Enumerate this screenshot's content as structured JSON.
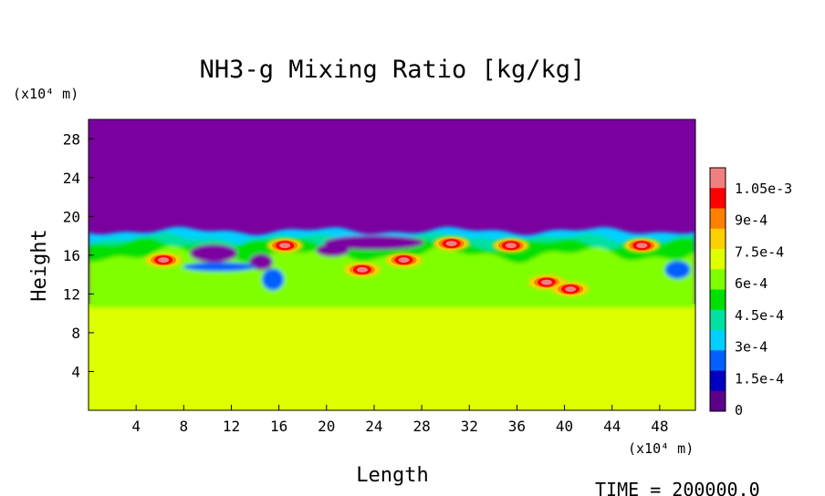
{
  "chart_data": {
    "type": "heatmap",
    "title": "NH3-g Mixing Ratio [kg/kg]",
    "xlabel": "Length",
    "ylabel": "Height",
    "x_unit": "(x10⁴ m)",
    "y_unit": "(x10⁴ m)",
    "xlim": [
      0,
      51
    ],
    "ylim": [
      0,
      30
    ],
    "x_ticks": [
      "4",
      "8",
      "12",
      "16",
      "20",
      "24",
      "28",
      "32",
      "36",
      "40",
      "44",
      "48"
    ],
    "y_ticks": [
      "4",
      "8",
      "12",
      "16",
      "20",
      "24",
      "28"
    ],
    "colorbar": {
      "min": 0,
      "max": 0.0011,
      "labels": [
        "1.05e-3",
        "9e-4",
        "7.5e-4",
        "6e-4",
        "4.5e-4",
        "3e-4",
        "1.5e-4",
        "0"
      ],
      "colors": [
        "#f08080",
        "#ff0000",
        "#ff8000",
        "#ffd000",
        "#e0ff00",
        "#80ff00",
        "#00e000",
        "#00e0a0",
        "#00d0ff",
        "#0060ff",
        "#0000c0",
        "#5a008a"
      ]
    },
    "regions": {
      "upper_value": 0,
      "upper_color": "#7b00a0",
      "lower_value": 0.00077,
      "lower_color": "#ddff00",
      "mixing_layer_bottom": 11,
      "mixing_layer_top": 18.5
    },
    "hotspots": [
      {
        "x": 6.3,
        "y": 15.5,
        "value": 0.00105
      },
      {
        "x": 16.5,
        "y": 17.0,
        "value": 0.00095
      },
      {
        "x": 23.0,
        "y": 14.5,
        "value": 0.00105
      },
      {
        "x": 26.5,
        "y": 15.5,
        "value": 0.0009
      },
      {
        "x": 30.5,
        "y": 17.2,
        "value": 0.001
      },
      {
        "x": 35.5,
        "y": 17.0,
        "value": 0.00095
      },
      {
        "x": 38.5,
        "y": 13.2,
        "value": 0.00105
      },
      {
        "x": 40.5,
        "y": 12.5,
        "value": 0.00095
      },
      {
        "x": 46.5,
        "y": 17.0,
        "value": 0.0009
      }
    ]
  },
  "footer": {
    "time_label": "TIME = 200000.0"
  }
}
